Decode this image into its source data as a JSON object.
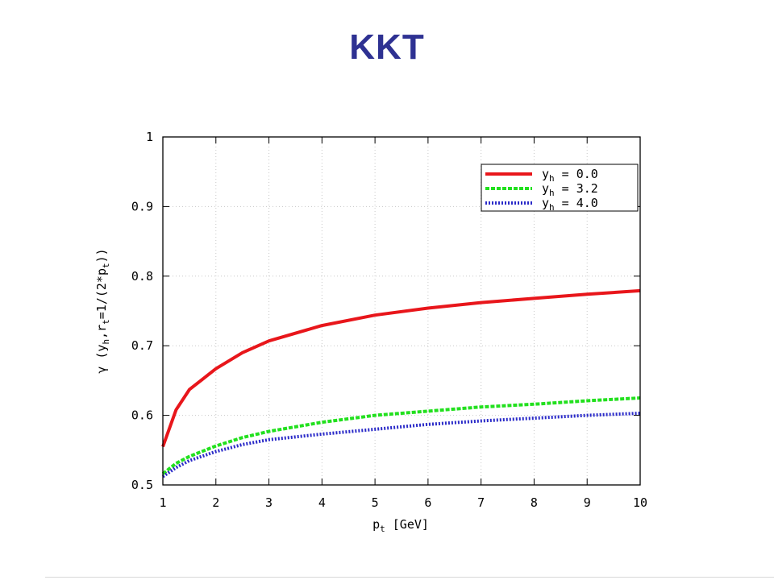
{
  "slide": {
    "title": "KKT"
  },
  "colors": {
    "title": "#2e3192",
    "grid": "#c8c8c8"
  },
  "chart_data": {
    "type": "line",
    "title": "",
    "xlabel": "p_t [GeV]",
    "ylabel": "γ (y_h, r_t=1/(2*p_t))",
    "xlim": [
      1,
      10
    ],
    "ylim": [
      0.5,
      1.0
    ],
    "xticks": [
      "1",
      "2",
      "3",
      "4",
      "5",
      "6",
      "7",
      "8",
      "9",
      "10"
    ],
    "yticks": [
      "0.5",
      "0.6",
      "0.7",
      "0.8",
      "0.9",
      "1"
    ],
    "grid": true,
    "legend_position": "top-right",
    "x": [
      1.0,
      1.25,
      1.5,
      2.0,
      2.5,
      3.0,
      4.0,
      5.0,
      6.0,
      7.0,
      8.0,
      9.0,
      10.0
    ],
    "series": [
      {
        "name": "y_h = 0.0",
        "color": "#e8161b",
        "dash": "solid",
        "values": [
          0.555,
          0.608,
          0.637,
          0.667,
          0.69,
          0.707,
          0.729,
          0.744,
          0.754,
          0.762,
          0.768,
          0.774,
          0.779
        ]
      },
      {
        "name": "y_h = 3.2",
        "color": "#22e01e",
        "dash": "dashed",
        "values": [
          0.516,
          0.531,
          0.541,
          0.556,
          0.568,
          0.577,
          0.59,
          0.6,
          0.606,
          0.612,
          0.616,
          0.621,
          0.625
        ]
      },
      {
        "name": "y_h = 4.0",
        "color": "#2a2ac8",
        "dash": "dotted",
        "values": [
          0.512,
          0.525,
          0.535,
          0.548,
          0.558,
          0.565,
          0.573,
          0.58,
          0.587,
          0.592,
          0.596,
          0.6,
          0.603
        ]
      }
    ],
    "legend": [
      {
        "main": "y",
        "sub": "h",
        "rest": " = 0.0"
      },
      {
        "main": "y",
        "sub": "h",
        "rest": " = 3.2"
      },
      {
        "main": "y",
        "sub": "h",
        "rest": " = 4.0"
      }
    ],
    "xlabel_parts": {
      "main": "p",
      "sub": "t",
      "rest": " [GeV]"
    },
    "ylabel_parts": {
      "a": "γ (y",
      "sub1": "h",
      "b": ",r",
      "sub2": "t",
      "c": "=1/(2*p",
      "sub3": "t",
      "d": "))"
    }
  }
}
